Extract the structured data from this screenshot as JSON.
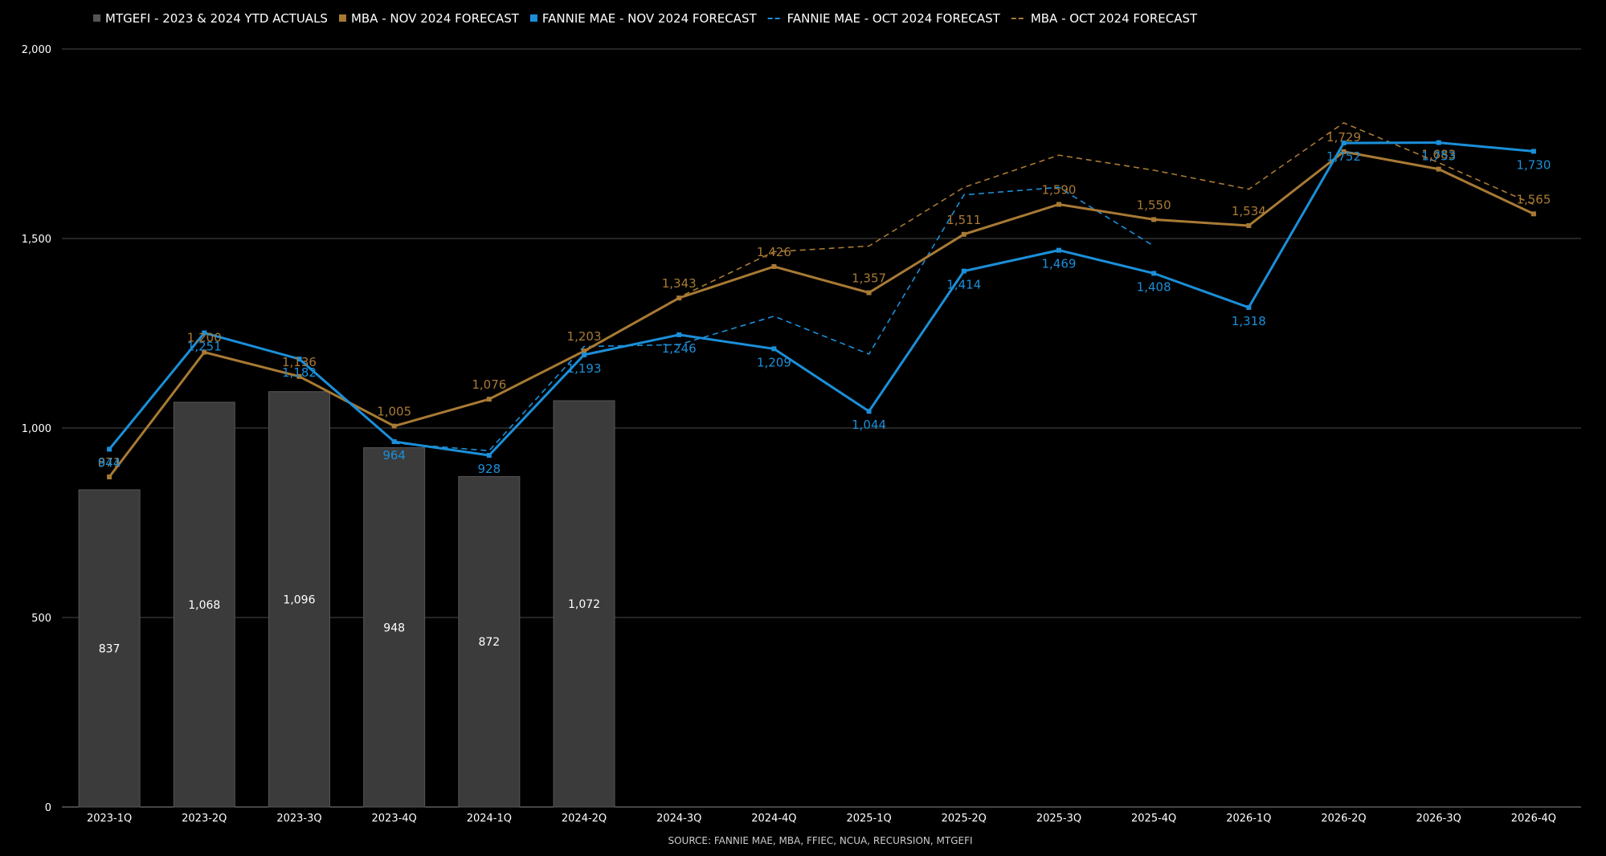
{
  "source_note": "SOURCE: FANNIE MAE, MBA, FFIEC, NCUA, RECURSION, MTGEFI",
  "colors": {
    "background": "#000000",
    "bars": "#3b3b3b",
    "mba": "#a87a35",
    "fannie": "#1b8fd9",
    "grid": "#4a4a4a"
  },
  "chart_data": {
    "type": "bar",
    "categories": [
      "2023-1Q",
      "2023-2Q",
      "2023-3Q",
      "2023-4Q",
      "2024-1Q",
      "2024-2Q",
      "2024-3Q",
      "2024-4Q",
      "2025-1Q",
      "2025-2Q",
      "2025-3Q",
      "2025-4Q",
      "2026-1Q",
      "2026-2Q",
      "2026-3Q",
      "2026-4Q"
    ],
    "ylim": [
      0,
      2000
    ],
    "yticks": [
      0,
      500,
      1000,
      1500,
      2000
    ],
    "ytick_labels": [
      "0",
      "500",
      "1,000",
      "1,500",
      "2,000"
    ],
    "grid": true,
    "legend_position": "top-left",
    "series": [
      {
        "name": "MTGEFI - 2023 & 2024 YTD ACTUALS",
        "kind": "bar",
        "color": "#3b3b3b",
        "values": [
          837,
          1068,
          1096,
          948,
          872,
          1072,
          null,
          null,
          null,
          null,
          null,
          null,
          null,
          null,
          null,
          null
        ]
      },
      {
        "name": "MBA - NOV 2024 FORECAST",
        "kind": "line",
        "color": "#a87a35",
        "values": [
          871,
          1200,
          1136,
          1005,
          1076,
          1203,
          1343,
          1426,
          1357,
          1511,
          1590,
          1550,
          1534,
          1729,
          1683,
          1565
        ]
      },
      {
        "name": "FANNIE MAE - NOV 2024 FORECAST",
        "kind": "line",
        "color": "#1b8fd9",
        "values": [
          944,
          1251,
          1182,
          964,
          928,
          1193,
          1246,
          1209,
          1044,
          1414,
          1469,
          1408,
          1318,
          1752,
          1753,
          1730
        ]
      },
      {
        "name": "FANNIE MAE - OCT 2024 FORECAST",
        "kind": "dashed",
        "color": "#1b8fd9",
        "values": [
          null,
          null,
          null,
          960,
          940,
          1215,
          1220,
          1295,
          1195,
          1615,
          1635,
          1480,
          null,
          null,
          null,
          null
        ]
      },
      {
        "name": "MBA - OCT 2024 FORECAST",
        "kind": "dashed",
        "color": "#a87a35",
        "values": [
          null,
          null,
          null,
          null,
          null,
          1200,
          1345,
          1465,
          1480,
          1635,
          1720,
          1680,
          1630,
          1805,
          1700,
          1590
        ]
      }
    ]
  }
}
